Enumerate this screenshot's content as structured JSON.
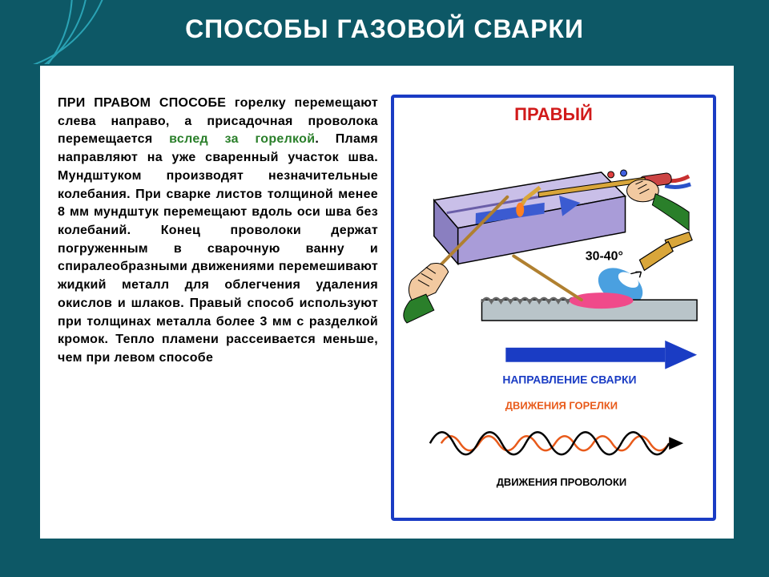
{
  "page": {
    "bg": "#0d5866",
    "accent_arc": "#2aa3b5"
  },
  "title": {
    "text": "СПОСОБЫ ГАЗОВОЙ СВАРКИ",
    "color": "#ffffff",
    "fontsize": 32
  },
  "body_text": {
    "lead": "ПРИ ПРАВОМ СПОСОБЕ",
    "part1": " горелку перемещают слева направо, а приса­дочная проволока перемещается ",
    "highlight": "вслед за горелкой",
    "part2": ". Пламя направляют на уже сваренный участок шва. Мундштуком производят нез­начительные колебания. При сварке листов толщиной менее 8 мм мундштук перемещают вдоль оси шва без колебаний. Конец проволоки держат погруженным в сварочную ванну и спиралеобразными дви­жениями перемешивают жидкий металл для облегчения удаления окислов и шлаков. Правый способ используют при толщинах металла более 3 мм с разделкой кромок. Тепло пламени рассеивается меньше, чем при левом способе",
    "color": "#000000",
    "highlight_color": "#2a7f2a",
    "fontsize": 16,
    "lineheight": 1.42
  },
  "diagram": {
    "frame_color": "#1a3cc4",
    "title": "ПРАВЫЙ",
    "title_color": "#d11a1a",
    "title_fontsize": 22,
    "angle_label": "30-40°",
    "angle_fontsize": 16,
    "angle_color": "#000000",
    "plate": {
      "fill": "#a99cd8",
      "top": "#c9bfe8",
      "side": "#8a7fc0",
      "arrow": "#3b5bd1"
    },
    "torch": {
      "handle": "#c44",
      "tube": "#d9a63a",
      "hose_red": "#c83030",
      "hose_blue": "#2a52c8"
    },
    "rod_color": "#b08030",
    "hand": {
      "skin": "#f2c9a0",
      "cuff": "#2a7f2a"
    },
    "flame": {
      "outer": "#4aa0e0",
      "inner": "#ffffff"
    },
    "workpiece": {
      "base": "#b9c4c9",
      "weld_hot": "#f04a8a",
      "bead": "#888888"
    },
    "direction_arrow": {
      "color": "#1a3cc4",
      "label": "НАПРАВЛЕНИЕ СВАРКИ",
      "label_color": "#1a3cc4",
      "label_fontsize": 14
    },
    "waves": {
      "torch": {
        "label": "ДВИЖЕНИЯ ГОРЕЛКИ",
        "color": "#e85a1a",
        "amplitude": 18,
        "cycles": 6,
        "width": 2.5
      },
      "rod": {
        "label": "ДВИЖЕНИЯ ПРОВОЛОКИ",
        "color": "#000000",
        "amplitude": 28,
        "cycles": 5,
        "width": 2.5
      },
      "label_fontsize": 13
    }
  }
}
